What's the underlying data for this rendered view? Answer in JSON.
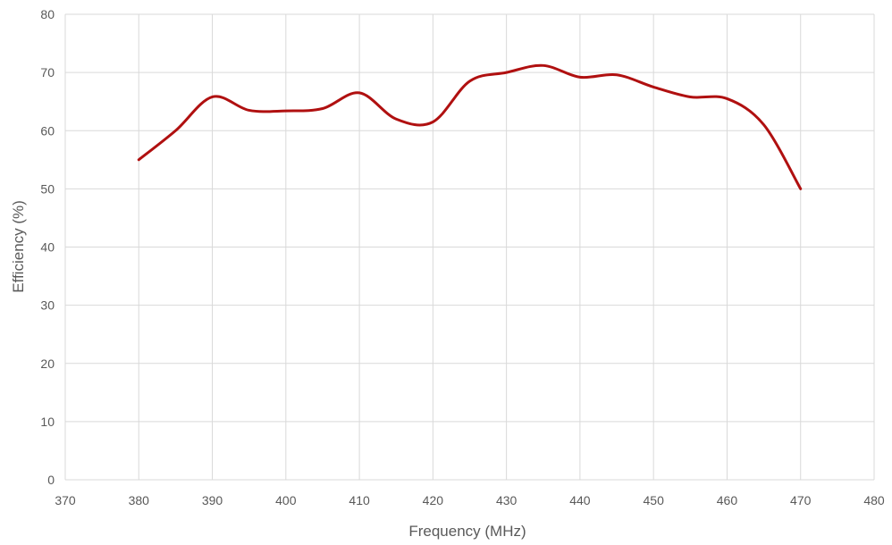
{
  "chart_data": {
    "type": "line",
    "xlabel": "Frequency (MHz)",
    "ylabel": "Efficiency (%)",
    "xlim": [
      370,
      480
    ],
    "ylim": [
      0,
      80
    ],
    "x_ticks": [
      370,
      380,
      390,
      400,
      410,
      420,
      430,
      440,
      450,
      460,
      470,
      480
    ],
    "y_ticks": [
      0,
      10,
      20,
      30,
      40,
      50,
      60,
      70,
      80
    ],
    "grid": true,
    "legend": "none",
    "series": [
      {
        "color": "#b01010",
        "smooth": true,
        "x": [
          380,
          385,
          390,
          395,
          400,
          405,
          410,
          415,
          420,
          425,
          430,
          435,
          440,
          445,
          450,
          455,
          460,
          465,
          470
        ],
        "y": [
          55,
          60,
          65.8,
          63.5,
          63.4,
          63.8,
          66.5,
          62,
          61.5,
          68.5,
          70,
          71.2,
          69.2,
          69.6,
          67.5,
          65.8,
          65.5,
          61,
          50
        ]
      }
    ]
  }
}
